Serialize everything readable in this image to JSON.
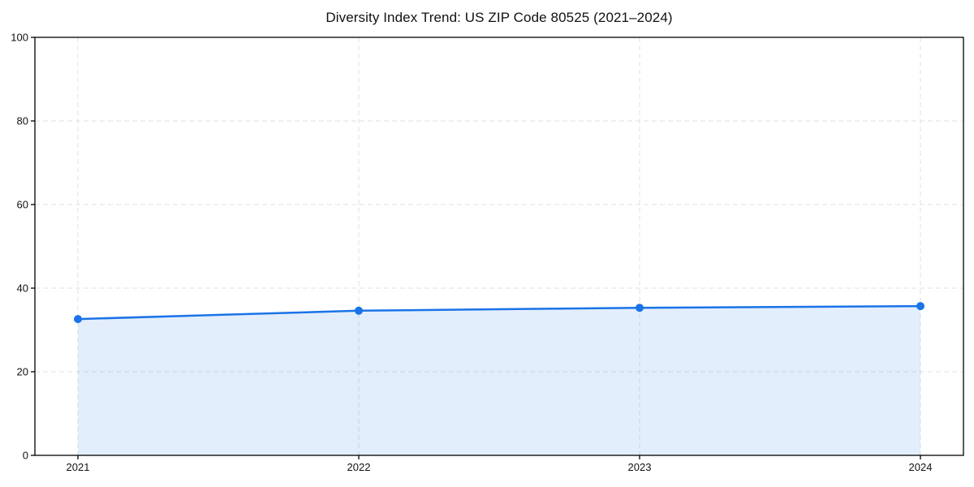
{
  "page": {
    "background": "#ffffff"
  },
  "chart_data": {
    "type": "line",
    "title": "Diversity Index Trend: US ZIP Code 80525 (2021–2024)",
    "categories": [
      "2021",
      "2022",
      "2023",
      "2024"
    ],
    "values": [
      32.6,
      34.6,
      35.3,
      35.7
    ],
    "xlabel": "",
    "ylabel": "",
    "ylim": [
      0,
      100
    ],
    "yticks": [
      0,
      20,
      40,
      60,
      80,
      100
    ],
    "grid": "dashed-both-axes",
    "legend": "none",
    "area_fill": true,
    "marker": "circle",
    "colors": {
      "line": "#1a73e8",
      "marker": "#1a73e8",
      "area": "rgba(26,115,232,0.12)",
      "grid": "#e0e0e0",
      "axis": "#000000",
      "text": "#111111",
      "background": "#ffffff"
    }
  }
}
